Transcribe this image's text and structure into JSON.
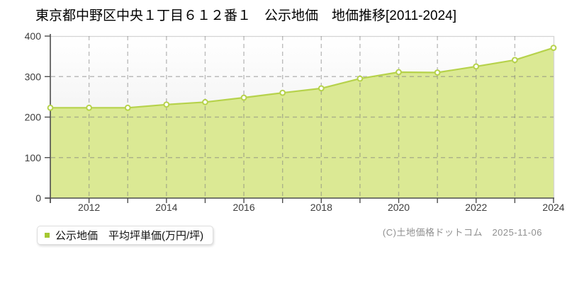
{
  "title": "東京都中野区中央１丁目６１２番１　公示地価　地価推移[2011-2024]",
  "legend": {
    "label": "公示地価　平均坪単価(万円/坪)",
    "marker_color": "#a5c832"
  },
  "footer": {
    "credit": "(C)土地価格ドットコム　2025-11-06"
  },
  "chart_data": {
    "type": "area",
    "x": [
      2011,
      2012,
      2013,
      2014,
      2015,
      2016,
      2017,
      2018,
      2019,
      2020,
      2021,
      2022,
      2023,
      2024
    ],
    "series": [
      {
        "name": "公示地価 平均坪単価(万円/坪)",
        "values": [
          223,
          223,
          223,
          231,
          237,
          248,
          260,
          271,
          295,
          311,
          310,
          325,
          341,
          371
        ]
      }
    ],
    "title": "東京都中野区中央１丁目６１２番１ 公示地価 地価推移[2011-2024]",
    "xlabel": "",
    "ylabel": "",
    "ylim": [
      0,
      400
    ],
    "yticks": [
      0,
      100,
      200,
      300,
      400
    ],
    "xticks_labeled": [
      2012,
      2014,
      2016,
      2018,
      2020,
      2022,
      2024
    ],
    "grid": true,
    "legend_position": "bottom-left",
    "style": {
      "area_fill": "#dbe994",
      "line_color": "#b6d24b",
      "marker_fill": "#ffffff",
      "marker_stroke": "#b6d24b",
      "grid_color": "rgba(125,125,125,0.5)",
      "axis_color": "#4d4d4d",
      "tick_label_color": "#3d3d3d",
      "plot_bg_top": "#ffffff",
      "plot_bg_bottom": "#e9e9e9",
      "plot_border_color": "#d4d4d4"
    }
  }
}
